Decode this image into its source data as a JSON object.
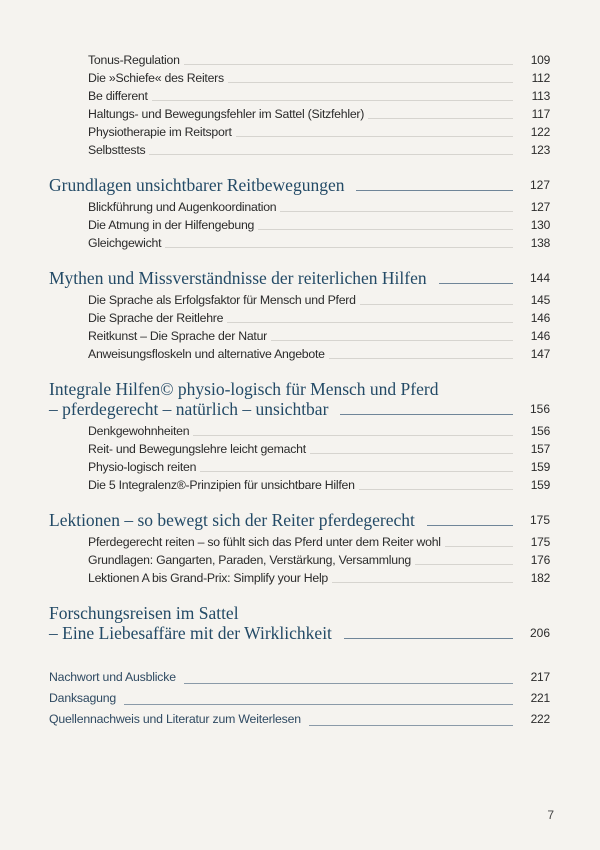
{
  "toc": [
    {
      "type": "sub",
      "title": "Tonus-Regulation",
      "page": "109"
    },
    {
      "type": "sub",
      "title": "Die »Schiefe« des Reiters",
      "page": "112"
    },
    {
      "type": "sub",
      "title": "Be different",
      "page": "113"
    },
    {
      "type": "sub",
      "title": "Haltungs- und Bewegungsfehler im Sattel (Sitzfehler)",
      "page": "117"
    },
    {
      "type": "sub",
      "title": "Physiotherapie im Reitsport",
      "page": "122"
    },
    {
      "type": "sub",
      "title": "Selbsttests",
      "page": "123"
    },
    {
      "type": "chapter",
      "title": "Grundlagen unsichtbarer Reitbewegungen",
      "page": "127"
    },
    {
      "type": "sub",
      "title": "Blickführung und Augenkoordination",
      "page": "127"
    },
    {
      "type": "sub",
      "title": "Die Atmung in der Hilfengebung",
      "page": "130"
    },
    {
      "type": "sub",
      "title": "Gleichgewicht",
      "page": "138"
    },
    {
      "type": "chapter",
      "title": "Mythen und Missverständnisse der reiterlichen Hilfen",
      "page": "144"
    },
    {
      "type": "sub",
      "title": "Die Sprache als Erfolgsfaktor für Mensch und Pferd",
      "page": "145"
    },
    {
      "type": "sub",
      "title": "Die Sprache der Reitlehre",
      "page": "146"
    },
    {
      "type": "sub",
      "title": "Reitkunst – Die Sprache der Natur",
      "page": "146"
    },
    {
      "type": "sub",
      "title": "Anweisungsfloskeln und alternative Angebote",
      "page": "147"
    },
    {
      "type": "chapter",
      "title_line1": "Integrale Hilfen© physio-logisch für Mensch und Pferd",
      "title": "– pferdegerecht – natürlich – unsichtbar",
      "page": "156"
    },
    {
      "type": "sub",
      "title": "Denkgewohnheiten",
      "page": "156"
    },
    {
      "type": "sub",
      "title": "Reit- und Bewegungslehre leicht gemacht",
      "page": "157"
    },
    {
      "type": "sub",
      "title": "Physio-logisch reiten",
      "page": "159"
    },
    {
      "type": "sub",
      "title": "Die 5 Integralenz®-Prinzipien für unsichtbare Hilfen",
      "page": "159"
    },
    {
      "type": "chapter",
      "title": "Lektionen – so bewegt sich der Reiter pferdegerecht",
      "page": "175"
    },
    {
      "type": "sub",
      "title": "Pferdegerecht reiten – so fühlt sich das Pferd unter dem Reiter wohl",
      "page": "175"
    },
    {
      "type": "sub",
      "title": "Grundlagen: Gangarten, Paraden, Verstärkung, Versammlung",
      "page": "176"
    },
    {
      "type": "sub",
      "title": "Lektionen A bis Grand-Prix: Simplify your Help",
      "page": "182"
    },
    {
      "type": "chapter",
      "title_line1": "Forschungsreisen im Sattel",
      "title": "– Eine Liebesaffäre mit der Wirklichkeit",
      "page": "206"
    },
    {
      "type": "end",
      "title": "Nachwort und Ausblicke",
      "page": "217"
    },
    {
      "type": "end",
      "title": "Danksagung",
      "page": "221"
    },
    {
      "type": "end",
      "title": "Quellennachweis und Literatur zum Weiterlesen",
      "page": "222"
    }
  ],
  "page_number": "7"
}
